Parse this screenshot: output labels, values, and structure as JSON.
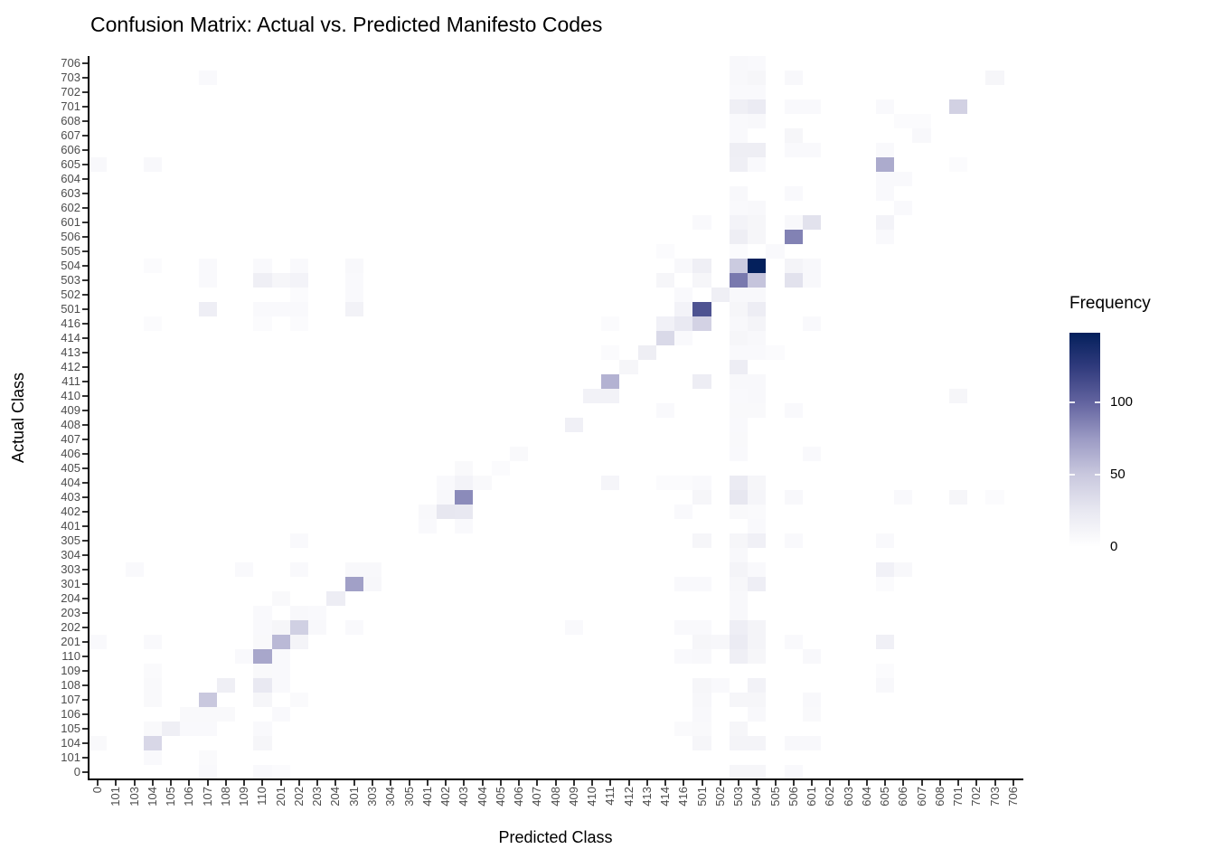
{
  "title": "Confusion Matrix: Actual vs. Predicted Manifesto Codes",
  "chart_data": {
    "type": "heatmap",
    "title": "Confusion Matrix: Actual vs. Predicted Manifesto Codes",
    "xlabel": "Predicted Class",
    "ylabel": "Actual Class",
    "grid": false,
    "x_categories": [
      "0",
      "101",
      "103",
      "104",
      "105",
      "106",
      "107",
      "108",
      "109",
      "110",
      "201",
      "202",
      "203",
      "204",
      "301",
      "303",
      "304",
      "305",
      "401",
      "402",
      "403",
      "404",
      "405",
      "406",
      "407",
      "408",
      "409",
      "410",
      "411",
      "412",
      "413",
      "414",
      "416",
      "501",
      "502",
      "503",
      "504",
      "505",
      "506",
      "601",
      "602",
      "603",
      "604",
      "605",
      "606",
      "607",
      "608",
      "701",
      "702",
      "703",
      "706"
    ],
    "y_categories_top_to_bottom": [
      "706",
      "703",
      "702",
      "701",
      "608",
      "607",
      "606",
      "605",
      "604",
      "603",
      "602",
      "601",
      "506",
      "505",
      "504",
      "503",
      "502",
      "501",
      "416",
      "414",
      "413",
      "412",
      "411",
      "410",
      "409",
      "408",
      "407",
      "406",
      "405",
      "404",
      "403",
      "402",
      "401",
      "305",
      "304",
      "303",
      "301",
      "204",
      "203",
      "202",
      "201",
      "110",
      "109",
      "108",
      "107",
      "106",
      "105",
      "104",
      "101",
      "0"
    ],
    "legend": {
      "title": "Frequency",
      "ticks": [
        0,
        50,
        100
      ],
      "min": 0,
      "max": 148,
      "position": "right"
    },
    "color_scale": {
      "low": "#ffffff",
      "high": "#04205c",
      "stops": [
        {
          "value": 0,
          "color": "#ffffff"
        },
        {
          "value": 25,
          "color": "#e8e8f1"
        },
        {
          "value": 50,
          "color": "#c9c8de"
        },
        {
          "value": 75,
          "color": "#9b9ac4"
        },
        {
          "value": 100,
          "color": "#62639f"
        },
        {
          "value": 125,
          "color": "#2f3a7c"
        },
        {
          "value": 148,
          "color": "#04205c"
        }
      ]
    },
    "cells_format": [
      "actual",
      "predicted",
      "frequency"
    ],
    "cells": [
      [
        "0",
        "107",
        6
      ],
      [
        "0",
        "110",
        6
      ],
      [
        "0",
        "201",
        4
      ],
      [
        "0",
        "503",
        10
      ],
      [
        "0",
        "504",
        10
      ],
      [
        "0",
        "506",
        6
      ],
      [
        "101",
        "104",
        6
      ],
      [
        "101",
        "107",
        5
      ],
      [
        "104",
        "0",
        7
      ],
      [
        "104",
        "104",
        38
      ],
      [
        "104",
        "110",
        10
      ],
      [
        "104",
        "501",
        10
      ],
      [
        "104",
        "503",
        12
      ],
      [
        "104",
        "504",
        12
      ],
      [
        "104",
        "506",
        8
      ],
      [
        "104",
        "601",
        8
      ],
      [
        "105",
        "104",
        7
      ],
      [
        "105",
        "105",
        17
      ],
      [
        "105",
        "106",
        6
      ],
      [
        "105",
        "107",
        6
      ],
      [
        "105",
        "110",
        6
      ],
      [
        "105",
        "416",
        5
      ],
      [
        "105",
        "501",
        7
      ],
      [
        "105",
        "503",
        10
      ],
      [
        "106",
        "106",
        7
      ],
      [
        "106",
        "107",
        7
      ],
      [
        "106",
        "108",
        7
      ],
      [
        "106",
        "201",
        6
      ],
      [
        "106",
        "501",
        8
      ],
      [
        "106",
        "504",
        8
      ],
      [
        "106",
        "601",
        7
      ],
      [
        "107",
        "104",
        7
      ],
      [
        "107",
        "107",
        50
      ],
      [
        "107",
        "110",
        10
      ],
      [
        "107",
        "202",
        5
      ],
      [
        "107",
        "501",
        9
      ],
      [
        "107",
        "503",
        10
      ],
      [
        "107",
        "504",
        10
      ],
      [
        "107",
        "601",
        8
      ],
      [
        "108",
        "104",
        7
      ],
      [
        "108",
        "108",
        17
      ],
      [
        "108",
        "110",
        24
      ],
      [
        "108",
        "201",
        6
      ],
      [
        "108",
        "501",
        10
      ],
      [
        "108",
        "502",
        6
      ],
      [
        "108",
        "504",
        14
      ],
      [
        "108",
        "605",
        8
      ],
      [
        "109",
        "104",
        5
      ],
      [
        "109",
        "110",
        7
      ],
      [
        "109",
        "201",
        6
      ],
      [
        "109",
        "605",
        4
      ],
      [
        "110",
        "109",
        6
      ],
      [
        "110",
        "110",
        68
      ],
      [
        "110",
        "201",
        6
      ],
      [
        "110",
        "416",
        6
      ],
      [
        "110",
        "501",
        8
      ],
      [
        "110",
        "503",
        17
      ],
      [
        "110",
        "504",
        10
      ],
      [
        "110",
        "601",
        8
      ],
      [
        "201",
        "0",
        6
      ],
      [
        "201",
        "104",
        6
      ],
      [
        "201",
        "110",
        7
      ],
      [
        "201",
        "201",
        58
      ],
      [
        "201",
        "202",
        12
      ],
      [
        "201",
        "501",
        10
      ],
      [
        "201",
        "502",
        9
      ],
      [
        "201",
        "503",
        22
      ],
      [
        "201",
        "504",
        12
      ],
      [
        "201",
        "506",
        6
      ],
      [
        "201",
        "605",
        16
      ],
      [
        "202",
        "110",
        6
      ],
      [
        "202",
        "201",
        10
      ],
      [
        "202",
        "202",
        44
      ],
      [
        "202",
        "203",
        8
      ],
      [
        "202",
        "301",
        6
      ],
      [
        "202",
        "409",
        6
      ],
      [
        "202",
        "416",
        6
      ],
      [
        "202",
        "501",
        6
      ],
      [
        "202",
        "503",
        18
      ],
      [
        "202",
        "504",
        12
      ],
      [
        "203",
        "110",
        6
      ],
      [
        "203",
        "202",
        8
      ],
      [
        "203",
        "203",
        6
      ],
      [
        "203",
        "503",
        8
      ],
      [
        "204",
        "201",
        7
      ],
      [
        "204",
        "204",
        20
      ],
      [
        "204",
        "503",
        8
      ],
      [
        "301",
        "301",
        72
      ],
      [
        "301",
        "303",
        9
      ],
      [
        "301",
        "416",
        6
      ],
      [
        "301",
        "501",
        6
      ],
      [
        "301",
        "503",
        9
      ],
      [
        "301",
        "504",
        18
      ],
      [
        "301",
        "605",
        4
      ],
      [
        "303",
        "103",
        6
      ],
      [
        "303",
        "109",
        6
      ],
      [
        "303",
        "202",
        6
      ],
      [
        "303",
        "301",
        8
      ],
      [
        "303",
        "303",
        8
      ],
      [
        "303",
        "503",
        12
      ],
      [
        "303",
        "504",
        6
      ],
      [
        "303",
        "605",
        15
      ],
      [
        "303",
        "606",
        8
      ],
      [
        "304",
        "503",
        8
      ],
      [
        "305",
        "202",
        6
      ],
      [
        "305",
        "501",
        10
      ],
      [
        "305",
        "503",
        10
      ],
      [
        "305",
        "504",
        16
      ],
      [
        "305",
        "506",
        6
      ],
      [
        "305",
        "605",
        6
      ],
      [
        "401",
        "401",
        6
      ],
      [
        "401",
        "403",
        6
      ],
      [
        "401",
        "504",
        6
      ],
      [
        "402",
        "401",
        8
      ],
      [
        "402",
        "402",
        26
      ],
      [
        "402",
        "403",
        25
      ],
      [
        "402",
        "416",
        6
      ],
      [
        "402",
        "503",
        7
      ],
      [
        "402",
        "504",
        5
      ],
      [
        "403",
        "402",
        8
      ],
      [
        "403",
        "403",
        82
      ],
      [
        "403",
        "501",
        10
      ],
      [
        "403",
        "503",
        26
      ],
      [
        "403",
        "504",
        11
      ],
      [
        "403",
        "506",
        8
      ],
      [
        "403",
        "606",
        6
      ],
      [
        "403",
        "701",
        10
      ],
      [
        "403",
        "703",
        4
      ],
      [
        "404",
        "402",
        6
      ],
      [
        "404",
        "403",
        13
      ],
      [
        "404",
        "404",
        7
      ],
      [
        "404",
        "411",
        11
      ],
      [
        "404",
        "414",
        4
      ],
      [
        "404",
        "416",
        4
      ],
      [
        "404",
        "501",
        6
      ],
      [
        "404",
        "503",
        22
      ],
      [
        "404",
        "504",
        10
      ],
      [
        "405",
        "403",
        7
      ],
      [
        "405",
        "405",
        4
      ],
      [
        "406",
        "406",
        7
      ],
      [
        "406",
        "503",
        6
      ],
      [
        "406",
        "601",
        6
      ],
      [
        "407",
        "503",
        7
      ],
      [
        "408",
        "409",
        16
      ],
      [
        "408",
        "503",
        6
      ],
      [
        "409",
        "414",
        6
      ],
      [
        "409",
        "503",
        7
      ],
      [
        "409",
        "504",
        7
      ],
      [
        "409",
        "506",
        6
      ],
      [
        "410",
        "410",
        14
      ],
      [
        "410",
        "411",
        14
      ],
      [
        "410",
        "503",
        6
      ],
      [
        "410",
        "504",
        8
      ],
      [
        "410",
        "701",
        10
      ],
      [
        "411",
        "411",
        62
      ],
      [
        "411",
        "501",
        20
      ],
      [
        "411",
        "503",
        8
      ],
      [
        "411",
        "504",
        8
      ],
      [
        "412",
        "412",
        10
      ],
      [
        "412",
        "503",
        20
      ],
      [
        "413",
        "411",
        4
      ],
      [
        "413",
        "413",
        19
      ],
      [
        "413",
        "503",
        6
      ],
      [
        "413",
        "504",
        6
      ],
      [
        "413",
        "505",
        4
      ],
      [
        "414",
        "414",
        37
      ],
      [
        "414",
        "416",
        6
      ],
      [
        "414",
        "503",
        10
      ],
      [
        "414",
        "504",
        8
      ],
      [
        "416",
        "104",
        4
      ],
      [
        "416",
        "110",
        4
      ],
      [
        "416",
        "202",
        4
      ],
      [
        "416",
        "411",
        4
      ],
      [
        "416",
        "414",
        15
      ],
      [
        "416",
        "416",
        24
      ],
      [
        "416",
        "501",
        42
      ],
      [
        "416",
        "503",
        8
      ],
      [
        "416",
        "504",
        12
      ],
      [
        "416",
        "601",
        6
      ],
      [
        "501",
        "107",
        18
      ],
      [
        "501",
        "110",
        6
      ],
      [
        "501",
        "201",
        6
      ],
      [
        "501",
        "202",
        6
      ],
      [
        "501",
        "301",
        14
      ],
      [
        "501",
        "416",
        13
      ],
      [
        "501",
        "501",
        110
      ],
      [
        "501",
        "503",
        10
      ],
      [
        "501",
        "504",
        20
      ],
      [
        "502",
        "202",
        4
      ],
      [
        "502",
        "301",
        6
      ],
      [
        "502",
        "416",
        6
      ],
      [
        "502",
        "502",
        17
      ],
      [
        "502",
        "503",
        8
      ],
      [
        "502",
        "504",
        8
      ],
      [
        "503",
        "107",
        6
      ],
      [
        "503",
        "110",
        17
      ],
      [
        "503",
        "201",
        10
      ],
      [
        "503",
        "202",
        13
      ],
      [
        "503",
        "301",
        6
      ],
      [
        "503",
        "414",
        10
      ],
      [
        "503",
        "501",
        10
      ],
      [
        "503",
        "503",
        90
      ],
      [
        "503",
        "504",
        52
      ],
      [
        "503",
        "506",
        30
      ],
      [
        "503",
        "601",
        8
      ],
      [
        "504",
        "104",
        4
      ],
      [
        "504",
        "107",
        6
      ],
      [
        "504",
        "110",
        6
      ],
      [
        "504",
        "202",
        6
      ],
      [
        "504",
        "301",
        8
      ],
      [
        "504",
        "416",
        8
      ],
      [
        "504",
        "501",
        17
      ],
      [
        "504",
        "503",
        48
      ],
      [
        "504",
        "504",
        148
      ],
      [
        "504",
        "506",
        12
      ],
      [
        "504",
        "601",
        8
      ],
      [
        "505",
        "414",
        4
      ],
      [
        "505",
        "503",
        4
      ],
      [
        "505",
        "505",
        6
      ],
      [
        "506",
        "503",
        19
      ],
      [
        "506",
        "504",
        10
      ],
      [
        "506",
        "506",
        86
      ],
      [
        "506",
        "605",
        6
      ],
      [
        "601",
        "501",
        6
      ],
      [
        "601",
        "503",
        13
      ],
      [
        "601",
        "504",
        10
      ],
      [
        "601",
        "506",
        8
      ],
      [
        "601",
        "601",
        30
      ],
      [
        "601",
        "605",
        13
      ],
      [
        "602",
        "503",
        6
      ],
      [
        "602",
        "504",
        8
      ],
      [
        "602",
        "606",
        6
      ],
      [
        "603",
        "503",
        8
      ],
      [
        "603",
        "506",
        6
      ],
      [
        "603",
        "605",
        6
      ],
      [
        "604",
        "605",
        6
      ],
      [
        "604",
        "606",
        6
      ],
      [
        "605",
        "0",
        8
      ],
      [
        "605",
        "104",
        8
      ],
      [
        "605",
        "503",
        17
      ],
      [
        "605",
        "504",
        6
      ],
      [
        "605",
        "605",
        66
      ],
      [
        "605",
        "701",
        4
      ],
      [
        "606",
        "503",
        19
      ],
      [
        "606",
        "504",
        19
      ],
      [
        "606",
        "506",
        6
      ],
      [
        "606",
        "601",
        6
      ],
      [
        "606",
        "605",
        6
      ],
      [
        "607",
        "503",
        6
      ],
      [
        "607",
        "506",
        10
      ],
      [
        "607",
        "607",
        8
      ],
      [
        "608",
        "503",
        6
      ],
      [
        "608",
        "504",
        8
      ],
      [
        "608",
        "606",
        4
      ],
      [
        "608",
        "607",
        4
      ],
      [
        "701",
        "503",
        17
      ],
      [
        "701",
        "504",
        22
      ],
      [
        "701",
        "506",
        6
      ],
      [
        "701",
        "601",
        6
      ],
      [
        "701",
        "605",
        6
      ],
      [
        "701",
        "701",
        43
      ],
      [
        "702",
        "503",
        6
      ],
      [
        "702",
        "504",
        6
      ],
      [
        "703",
        "107",
        6
      ],
      [
        "703",
        "503",
        8
      ],
      [
        "703",
        "504",
        10
      ],
      [
        "703",
        "506",
        8
      ],
      [
        "703",
        "703",
        10
      ],
      [
        "706",
        "503",
        8
      ],
      [
        "706",
        "504",
        6
      ]
    ]
  }
}
